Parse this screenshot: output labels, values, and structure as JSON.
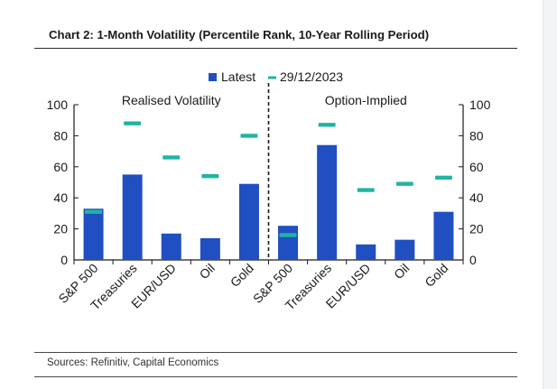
{
  "title": "Chart 2: 1-Month Volatility (Percentile Rank, 10-Year Rolling Period)",
  "source": "Sources: Refinitiv, Capital Economics",
  "colors": {
    "latest": "#1f4fc1",
    "marker": "#1fb5a3",
    "axis": "#1a1a1a",
    "text": "#1a1a1a"
  },
  "chart_data": {
    "type": "bar",
    "categories": [
      "S&P 500",
      "Treasuries",
      "EUR/USD",
      "Oil",
      "Gold",
      "S&P 500",
      "Treasuries",
      "EUR/USD",
      "Oil",
      "Gold"
    ],
    "groups": [
      {
        "label": "Realised Volatility",
        "from": 0,
        "to": 4
      },
      {
        "label": "Option-Implied",
        "from": 5,
        "to": 9
      }
    ],
    "series": [
      {
        "name": "Latest",
        "style": "bar",
        "values": [
          33,
          55,
          17,
          14,
          49,
          22,
          74,
          10,
          13,
          31
        ]
      },
      {
        "name": "29/12/2023",
        "style": "marker",
        "values": [
          31,
          88,
          66,
          54,
          80,
          16,
          87,
          45,
          49,
          53
        ]
      }
    ],
    "ylim": [
      0,
      100
    ],
    "yticks": [
      0,
      20,
      40,
      60,
      80,
      100
    ],
    "legend_position": "top-center",
    "grid": false
  }
}
